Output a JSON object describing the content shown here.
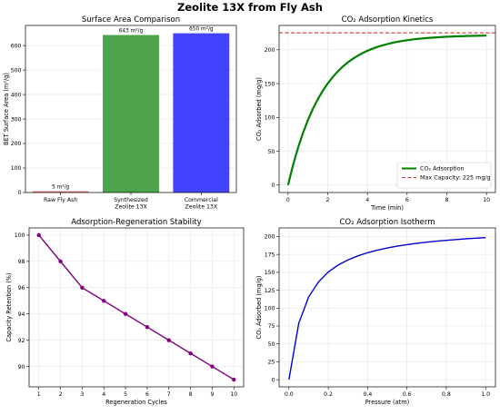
{
  "figure": {
    "title": "Zeolite 13X from Fly Ash"
  },
  "chart_data": [
    {
      "type": "bar",
      "title": "Surface Area Comparison",
      "xlabel": "",
      "ylabel": "BET Surface Area (m²/g)",
      "categories": [
        [
          "Raw Fly Ash"
        ],
        [
          "Synthesized",
          "Zeolite 13X"
        ],
        [
          "Commercial",
          "Zeolite 13X"
        ]
      ],
      "values": [
        5,
        643,
        650
      ],
      "value_labels": [
        "5 m²/g",
        "643 m²/g",
        "650 m²/g"
      ],
      "colors": [
        "#e05a5a",
        "#3a9a3a",
        "#2f2fff"
      ],
      "ylim": [
        0,
        682
      ],
      "yticks": [
        0,
        100,
        200,
        300,
        400,
        500,
        600
      ],
      "grid": true
    },
    {
      "type": "line",
      "title": "CO₂ Adsorption Kinetics",
      "xlabel": "Time (min)",
      "ylabel": "CO₂ Adsorbed (mg/g)",
      "series": [
        {
          "name": "CO₂ Adsorption",
          "color": "#008000",
          "x": [
            0,
            0.25,
            0.5,
            0.75,
            1,
            1.25,
            1.5,
            1.75,
            2,
            2.25,
            2.5,
            2.75,
            3,
            3.25,
            3.5,
            3.75,
            4,
            4.25,
            4.5,
            4.75,
            5,
            5.25,
            5.5,
            5.75,
            6,
            6.25,
            6.5,
            6.75,
            7,
            7.25,
            7.5,
            7.75,
            8,
            8.25,
            8.5,
            8.75,
            9,
            9.25,
            9.5,
            9.75,
            10
          ],
          "y": [
            0,
            29.3,
            54.7,
            76.8,
            95.9,
            112.5,
            126.9,
            139.4,
            150.2,
            159.6,
            167.8,
            174.9,
            181.1,
            186.4,
            191.0,
            195.0,
            198.5,
            201.5,
            204.2,
            206.4,
            208.4,
            210.2,
            211.7,
            213.0,
            214.1,
            215.1,
            216.0,
            216.7,
            217.4,
            217.9,
            218.4,
            218.9,
            219.3,
            219.6,
            219.9,
            220.1,
            220.4,
            220.6,
            220.7,
            220.9,
            221.0
          ]
        },
        {
          "name": "Max Capacity: 225 mg/g",
          "color": "#e03030",
          "dashed": true,
          "x": [
            -0.45,
            10.45
          ],
          "y": [
            225,
            225
          ]
        }
      ],
      "xlim": [
        -0.45,
        10.45
      ],
      "ylim": [
        -11,
        236
      ],
      "xticks": [
        0,
        2,
        4,
        6,
        8,
        10
      ],
      "yticks": [
        0,
        50,
        100,
        150,
        200
      ],
      "legend": "lower-right",
      "grid": true
    },
    {
      "type": "line",
      "title": "Adsorption-Regeneration Stability",
      "xlabel": "Regeneration Cycles",
      "ylabel": "Capacity Retention (%)",
      "series": [
        {
          "name": "",
          "color": "#800080",
          "markers": true,
          "x": [
            1,
            2,
            3,
            4,
            5,
            6,
            7,
            8,
            9,
            10
          ],
          "y": [
            100,
            98,
            96,
            95,
            94,
            93,
            92,
            91,
            90,
            89
          ]
        }
      ],
      "xlim": [
        0.55,
        10.45
      ],
      "ylim": [
        88.45,
        100.55
      ],
      "xticks": [
        1,
        2,
        3,
        4,
        5,
        6,
        7,
        8,
        9,
        10
      ],
      "yticks": [
        90,
        92,
        94,
        96,
        98,
        100
      ],
      "grid": true
    },
    {
      "type": "line",
      "title": "CO₂ Adsorption Isotherm",
      "xlabel": "Pressure (atm)",
      "ylabel": "CO₂ Adsorbed (mg/g)",
      "series": [
        {
          "name": "",
          "color": "#0000cc",
          "x": [
            0,
            0.05,
            0.1,
            0.15,
            0.2,
            0.25,
            0.3,
            0.35,
            0.4,
            0.45,
            0.5,
            0.55,
            0.6,
            0.65,
            0.7,
            0.75,
            0.8,
            0.85,
            0.9,
            0.95,
            1
          ],
          "y": [
            0,
            78.8,
            115.4,
            136.5,
            150.4,
            160.1,
            167.3,
            172.9,
            177.4,
            181.0,
            184.0,
            186.5,
            188.6,
            190.5,
            192.1,
            193.5,
            194.7,
            195.8,
            196.8,
            197.7,
            198.5
          ]
        }
      ],
      "xlim": [
        -0.05,
        1.05
      ],
      "ylim": [
        -10,
        212
      ],
      "xticks": [
        0.0,
        0.2,
        0.4,
        0.6,
        0.8,
        1.0
      ],
      "yticks": [
        0,
        25,
        50,
        75,
        100,
        125,
        150,
        175,
        200
      ],
      "grid": true
    }
  ]
}
